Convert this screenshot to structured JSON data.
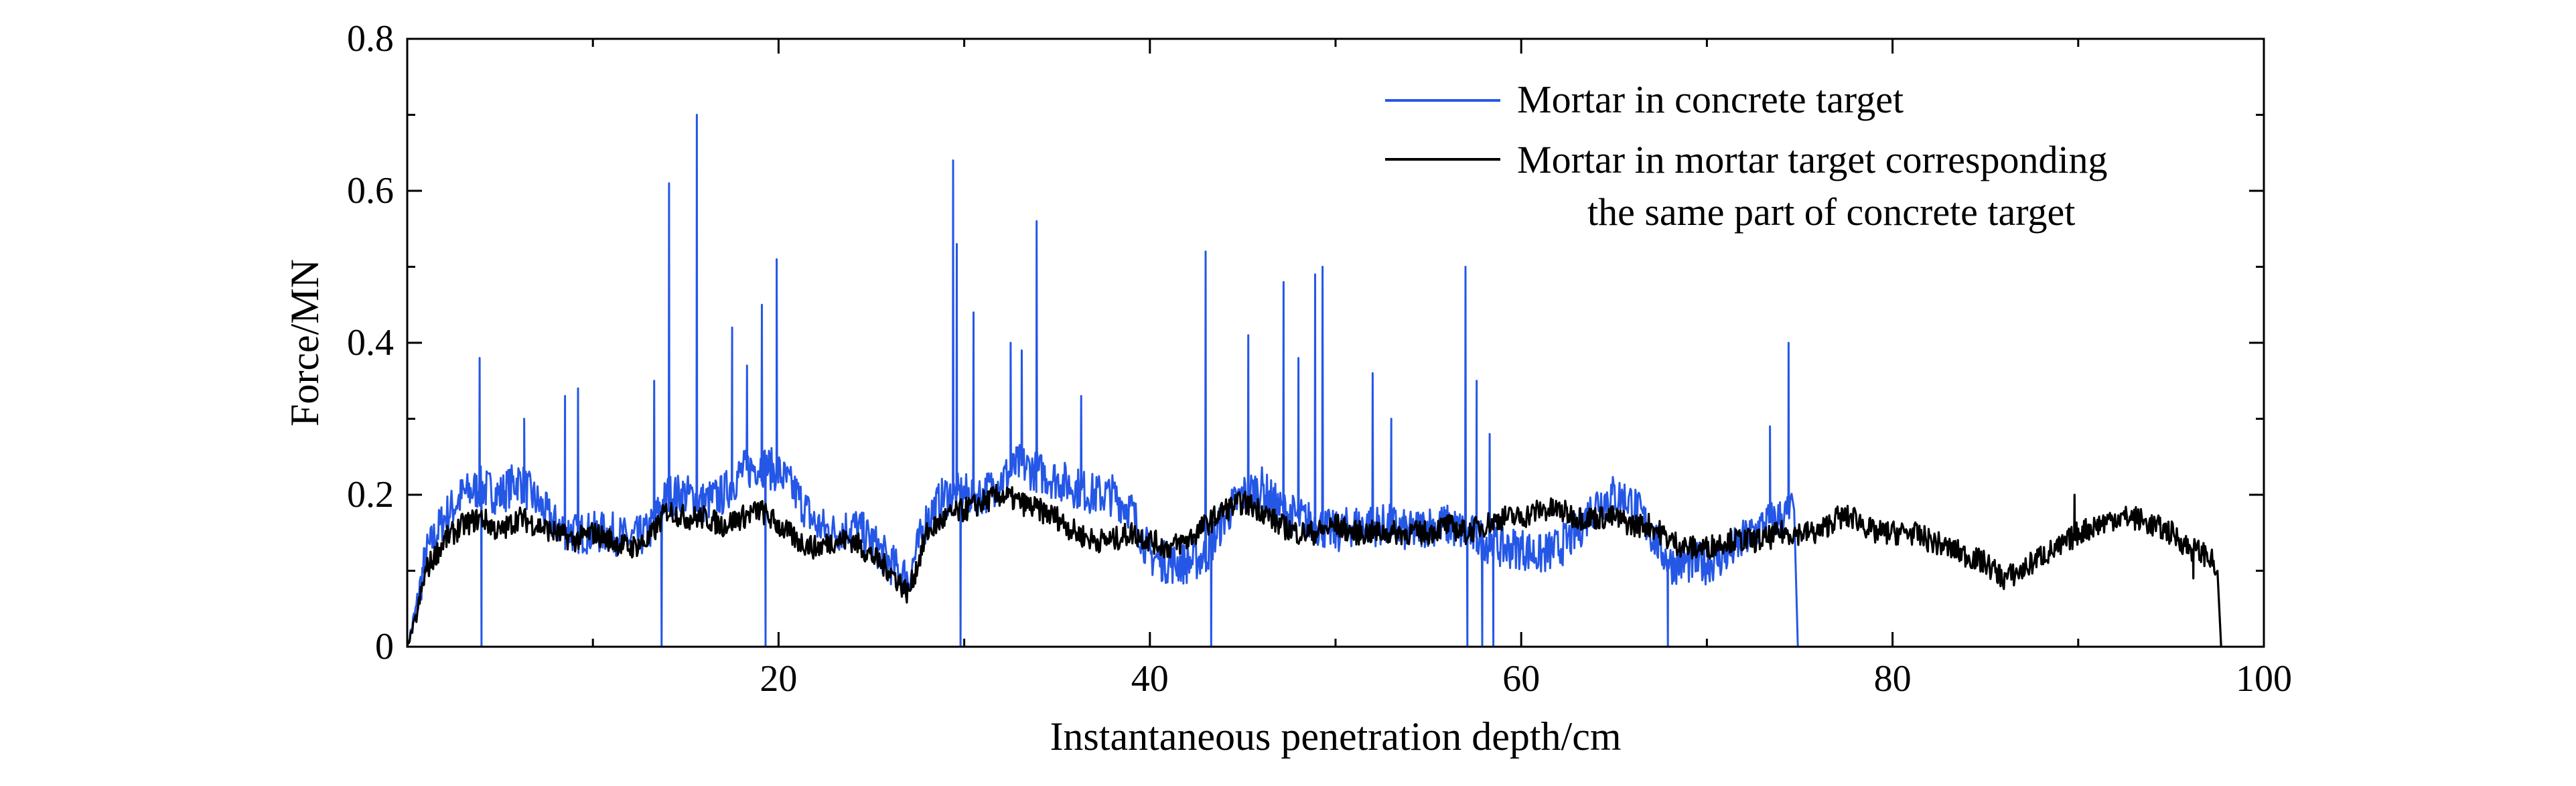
{
  "chart_data": {
    "type": "line",
    "xlabel": "Instantaneous penetration depth/cm",
    "ylabel": "Force/MN",
    "xlim": [
      0,
      100
    ],
    "ylim": [
      0,
      0.8
    ],
    "x_ticks": [
      20,
      40,
      60,
      80,
      100
    ],
    "x_tick_labels": [
      "20",
      "40",
      "60",
      "80",
      "100"
    ],
    "y_ticks": [
      0,
      0.2,
      0.4,
      0.6,
      0.8
    ],
    "y_tick_labels": [
      "0",
      "0.2",
      "0.4",
      "0.6",
      "0.8"
    ],
    "grid": false,
    "legend_position": "top-right",
    "series": [
      {
        "name": "Mortar in concrete target",
        "color": "#2557e6",
        "points": [
          [
            0,
            0
          ],
          [
            0.5,
            0.05
          ],
          [
            1,
            0.12
          ],
          [
            2,
            0.17
          ],
          [
            3,
            0.2
          ],
          [
            4,
            0.21
          ],
          [
            5,
            0.2
          ],
          [
            6,
            0.22
          ],
          [
            7,
            0.19
          ],
          [
            8,
            0.16
          ],
          [
            9,
            0.15
          ],
          [
            10,
            0.15
          ],
          [
            11,
            0.15
          ],
          [
            12,
            0.14
          ],
          [
            13,
            0.15
          ],
          [
            14,
            0.2
          ],
          [
            15,
            0.2
          ],
          [
            16,
            0.19
          ],
          [
            17,
            0.2
          ],
          [
            18,
            0.23
          ],
          [
            19,
            0.24
          ],
          [
            20,
            0.23
          ],
          [
            21,
            0.2
          ],
          [
            22,
            0.16
          ],
          [
            23,
            0.15
          ],
          [
            24,
            0.16
          ],
          [
            25,
            0.14
          ],
          [
            26,
            0.11
          ],
          [
            27,
            0.09
          ],
          [
            28,
            0.17
          ],
          [
            29,
            0.2
          ],
          [
            30,
            0.2
          ],
          [
            31,
            0.2
          ],
          [
            32,
            0.22
          ],
          [
            33,
            0.24
          ],
          [
            34,
            0.23
          ],
          [
            35,
            0.22
          ],
          [
            36,
            0.21
          ],
          [
            37,
            0.2
          ],
          [
            38,
            0.2
          ],
          [
            39,
            0.18
          ],
          [
            40,
            0.12
          ],
          [
            41,
            0.11
          ],
          [
            42,
            0.11
          ],
          [
            43,
            0.12
          ],
          [
            44,
            0.17
          ],
          [
            45,
            0.2
          ],
          [
            46,
            0.21
          ],
          [
            47,
            0.18
          ],
          [
            48,
            0.17
          ],
          [
            49,
            0.16
          ],
          [
            50,
            0.15
          ],
          [
            51,
            0.16
          ],
          [
            52,
            0.16
          ],
          [
            53,
            0.16
          ],
          [
            54,
            0.15
          ],
          [
            55,
            0.16
          ],
          [
            56,
            0.16
          ],
          [
            57,
            0.15
          ],
          [
            58,
            0.14
          ],
          [
            59,
            0.13
          ],
          [
            60,
            0.13
          ],
          [
            61,
            0.12
          ],
          [
            62,
            0.13
          ],
          [
            63,
            0.15
          ],
          [
            64,
            0.19
          ],
          [
            65,
            0.2
          ],
          [
            66,
            0.19
          ],
          [
            67,
            0.15
          ],
          [
            68,
            0.11
          ],
          [
            69,
            0.11
          ],
          [
            70,
            0.11
          ],
          [
            71,
            0.12
          ],
          [
            72,
            0.14
          ],
          [
            73,
            0.16
          ],
          [
            74,
            0.17
          ],
          [
            74.7,
            0.18
          ],
          [
            74.9,
            0.0
          ]
        ],
        "spikes": [
          [
            3.9,
            0.38
          ],
          [
            4,
            0.0
          ],
          [
            6.3,
            0.3
          ],
          [
            8.5,
            0.33
          ],
          [
            9.2,
            0.34
          ],
          [
            13.3,
            0.35
          ],
          [
            13.7,
            0.0
          ],
          [
            14.1,
            0.61
          ],
          [
            15.6,
            0.7
          ],
          [
            17.5,
            0.42
          ],
          [
            18.3,
            0.37
          ],
          [
            19.1,
            0.45
          ],
          [
            19.3,
            0.0
          ],
          [
            19.9,
            0.51
          ],
          [
            29.4,
            0.64
          ],
          [
            29.6,
            0.53
          ],
          [
            29.8,
            0.0
          ],
          [
            30.5,
            0.44
          ],
          [
            32.5,
            0.4
          ],
          [
            33.1,
            0.39
          ],
          [
            33.9,
            0.56
          ],
          [
            36.3,
            0.33
          ],
          [
            43,
            0.52
          ],
          [
            43.3,
            0.0
          ],
          [
            45.3,
            0.41
          ],
          [
            47.2,
            0.48
          ],
          [
            48,
            0.38
          ],
          [
            48.9,
            0.49
          ],
          [
            49.3,
            0.5
          ],
          [
            52,
            0.36
          ],
          [
            53,
            0.3
          ],
          [
            57,
            0.5
          ],
          [
            57.1,
            0.0
          ],
          [
            57.6,
            0.35
          ],
          [
            57.9,
            0.0
          ],
          [
            58.3,
            0.28
          ],
          [
            58.5,
            0.0
          ],
          [
            67.9,
            0.0
          ],
          [
            73.4,
            0.29
          ],
          [
            74.4,
            0.4
          ]
        ]
      },
      {
        "name": "Mortar in mortar target corresponding the same part of concrete target",
        "legend_lines": [
          "Mortar in mortar target corresponding",
          "the same part of concrete target"
        ],
        "color": "#000000",
        "points": [
          [
            0,
            0
          ],
          [
            0.5,
            0.04
          ],
          [
            1,
            0.1
          ],
          [
            2,
            0.14
          ],
          [
            3,
            0.16
          ],
          [
            4,
            0.17
          ],
          [
            5,
            0.15
          ],
          [
            6,
            0.17
          ],
          [
            7,
            0.16
          ],
          [
            8,
            0.15
          ],
          [
            9,
            0.14
          ],
          [
            10,
            0.15
          ],
          [
            11,
            0.14
          ],
          [
            12,
            0.13
          ],
          [
            13,
            0.14
          ],
          [
            14,
            0.18
          ],
          [
            15,
            0.17
          ],
          [
            16,
            0.17
          ],
          [
            17,
            0.16
          ],
          [
            18,
            0.17
          ],
          [
            19,
            0.18
          ],
          [
            20,
            0.16
          ],
          [
            21,
            0.14
          ],
          [
            22,
            0.13
          ],
          [
            23,
            0.14
          ],
          [
            24,
            0.14
          ],
          [
            25,
            0.12
          ],
          [
            26,
            0.1
          ],
          [
            27,
            0.07
          ],
          [
            28,
            0.15
          ],
          [
            29,
            0.17
          ],
          [
            30,
            0.18
          ],
          [
            31,
            0.19
          ],
          [
            32,
            0.2
          ],
          [
            33,
            0.19
          ],
          [
            34,
            0.18
          ],
          [
            35,
            0.17
          ],
          [
            36,
            0.15
          ],
          [
            37,
            0.14
          ],
          [
            38,
            0.14
          ],
          [
            39,
            0.15
          ],
          [
            40,
            0.14
          ],
          [
            41,
            0.13
          ],
          [
            42,
            0.14
          ],
          [
            43,
            0.16
          ],
          [
            44,
            0.18
          ],
          [
            45,
            0.19
          ],
          [
            46,
            0.18
          ],
          [
            47,
            0.16
          ],
          [
            48,
            0.15
          ],
          [
            49,
            0.15
          ],
          [
            50,
            0.16
          ],
          [
            51,
            0.15
          ],
          [
            52,
            0.15
          ],
          [
            53,
            0.15
          ],
          [
            54,
            0.15
          ],
          [
            55,
            0.15
          ],
          [
            56,
            0.16
          ],
          [
            57,
            0.15
          ],
          [
            58,
            0.16
          ],
          [
            59,
            0.17
          ],
          [
            60,
            0.17
          ],
          [
            61,
            0.18
          ],
          [
            62,
            0.18
          ],
          [
            63,
            0.17
          ],
          [
            64,
            0.17
          ],
          [
            65,
            0.17
          ],
          [
            66,
            0.16
          ],
          [
            67,
            0.16
          ],
          [
            68,
            0.14
          ],
          [
            69,
            0.13
          ],
          [
            70,
            0.13
          ],
          [
            71,
            0.14
          ],
          [
            72,
            0.14
          ],
          [
            73,
            0.14
          ],
          [
            74,
            0.15
          ],
          [
            75,
            0.15
          ],
          [
            76,
            0.15
          ],
          [
            77,
            0.17
          ],
          [
            78,
            0.17
          ],
          [
            79,
            0.15
          ],
          [
            80,
            0.15
          ],
          [
            81,
            0.15
          ],
          [
            82,
            0.14
          ],
          [
            83,
            0.13
          ],
          [
            84,
            0.12
          ],
          [
            85,
            0.11
          ],
          [
            86,
            0.09
          ],
          [
            87,
            0.1
          ],
          [
            88,
            0.12
          ],
          [
            89,
            0.13
          ],
          [
            90,
            0.15
          ],
          [
            91,
            0.16
          ],
          [
            92,
            0.17
          ],
          [
            93,
            0.17
          ],
          [
            94,
            0.16
          ],
          [
            95,
            0.15
          ],
          [
            96,
            0.13
          ],
          [
            97,
            0.12
          ],
          [
            97.5,
            0.1
          ],
          [
            97.7,
            0.0
          ]
        ],
        "spikes": [
          [
            89.8,
            0.2
          ],
          [
            96.2,
            0.09
          ]
        ]
      }
    ]
  }
}
